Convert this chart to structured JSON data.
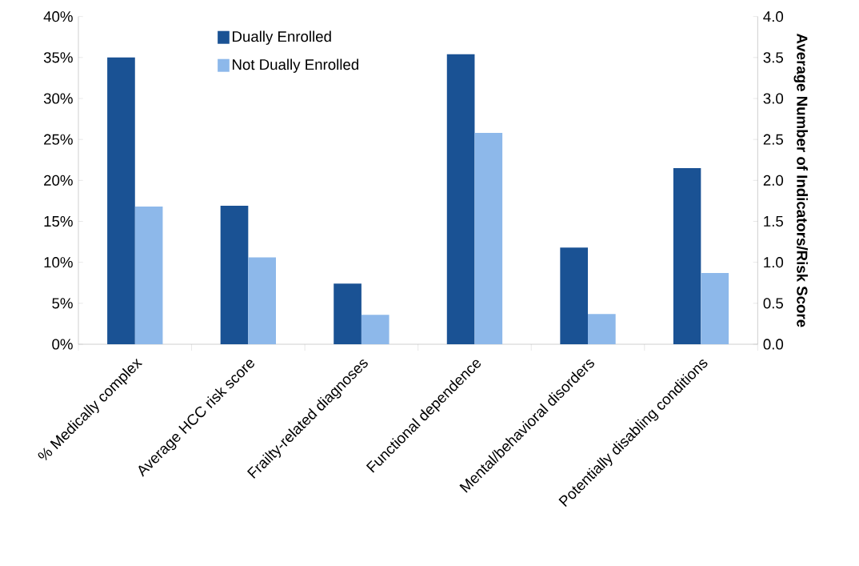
{
  "chart_data": {
    "type": "bar",
    "categories": [
      "% Medically complex",
      "Average HCC risk score",
      "Frailty-related diagnoses",
      "Functional dependence",
      "Mental/behavioral disorders",
      "Potentially disabling conditions"
    ],
    "series": [
      {
        "name": "Dually Enrolled",
        "color": "#1a5294",
        "values": [
          35,
          16.9,
          7.4,
          35.4,
          11.8,
          21.5
        ]
      },
      {
        "name": "Not Dually Enrolled",
        "color": "#8db8ea",
        "values": [
          16.8,
          10.6,
          3.6,
          25.8,
          3.7,
          8.7
        ]
      }
    ],
    "ylim": [
      0,
      40
    ],
    "yticks": [
      {
        "value": 0,
        "label": "0%"
      },
      {
        "value": 5,
        "label": "5%"
      },
      {
        "value": 10,
        "label": "10%"
      },
      {
        "value": 15,
        "label": "15%"
      },
      {
        "value": 20,
        "label": "20%"
      },
      {
        "value": 25,
        "label": "25%"
      },
      {
        "value": 30,
        "label": "30%"
      },
      {
        "value": 35,
        "label": "35%"
      },
      {
        "value": 40,
        "label": "40%"
      }
    ],
    "y2label": "Average Number of Indicators/Risk Score",
    "y2lim": [
      0,
      4
    ],
    "y2ticks": [
      {
        "value": 0,
        "label": "0.0"
      },
      {
        "value": 0.5,
        "label": "0.5"
      },
      {
        "value": 1,
        "label": "1.0"
      },
      {
        "value": 1.5,
        "label": "1.5"
      },
      {
        "value": 2,
        "label": "2.0"
      },
      {
        "value": 2.5,
        "label": "2.5"
      },
      {
        "value": 3,
        "label": "3.0"
      },
      {
        "value": 3.5,
        "label": "3.5"
      },
      {
        "value": 4,
        "label": "4.0"
      }
    ],
    "legend": "top left",
    "grid": false
  }
}
